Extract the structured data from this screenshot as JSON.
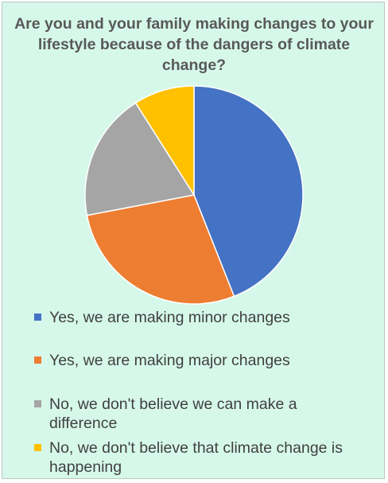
{
  "chart_data": {
    "type": "pie",
    "title": "Are you and your family making changes to your lifestyle because of the dangers of climate change?",
    "categories": [
      "Yes, we are making minor changes",
      "Yes, we are making major changes",
      "No, we don't believe we can make a difference",
      "No, we don't believe that climate change is happening"
    ],
    "values": [
      44,
      28,
      19,
      9
    ],
    "colors": [
      "#4472c4",
      "#ed7d31",
      "#a5a5a5",
      "#ffc000"
    ],
    "legend_position": "bottom",
    "start_angle": "top, clockwise"
  }
}
